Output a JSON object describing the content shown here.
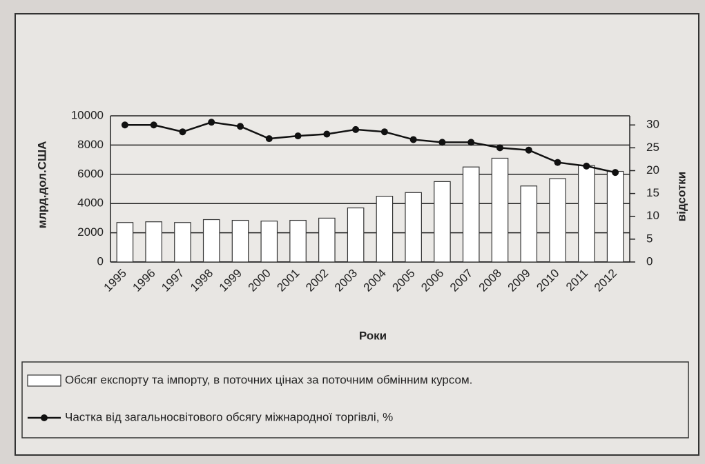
{
  "chart_data": {
    "type": "bar_line",
    "categories": [
      "1995",
      "1996",
      "1997",
      "1998",
      "1999",
      "2000",
      "2001",
      "2002",
      "2003",
      "2004",
      "2005",
      "2006",
      "2007",
      "2008",
      "2009",
      "2010",
      "2011",
      "2012"
    ],
    "series": [
      {
        "name": "Обсяг експорту та імпорту, в поточних цінах за поточним обмінним курсом.",
        "type": "bar",
        "color": "#ffffff",
        "axis": "y",
        "values": [
          2700,
          2750,
          2700,
          2900,
          2850,
          2800,
          2850,
          3000,
          3700,
          4500,
          4750,
          5500,
          6500,
          7100,
          5200,
          5700,
          6600,
          6200
        ]
      },
      {
        "name": "Частка від загальносвітового обсягу міжнародної торгівлі, %",
        "type": "line",
        "color": "#111111",
        "axis": "y2",
        "values": [
          30,
          30,
          28.5,
          30.6,
          29.7,
          27,
          27.6,
          28,
          29,
          28.5,
          26.8,
          26.2,
          26.2,
          25,
          24.5,
          21.8,
          21,
          19.6
        ]
      }
    ],
    "ylabel": "млрд.дол.США",
    "y2label": "відсотки",
    "xlabel": "Роки",
    "ylim": [
      0,
      10000
    ],
    "yticks": [
      0,
      2000,
      4000,
      6000,
      8000,
      10000
    ],
    "y2lim": [
      0,
      32
    ],
    "y2ticks": [
      0,
      5,
      10,
      15,
      20,
      25,
      30
    ],
    "grid": true
  }
}
